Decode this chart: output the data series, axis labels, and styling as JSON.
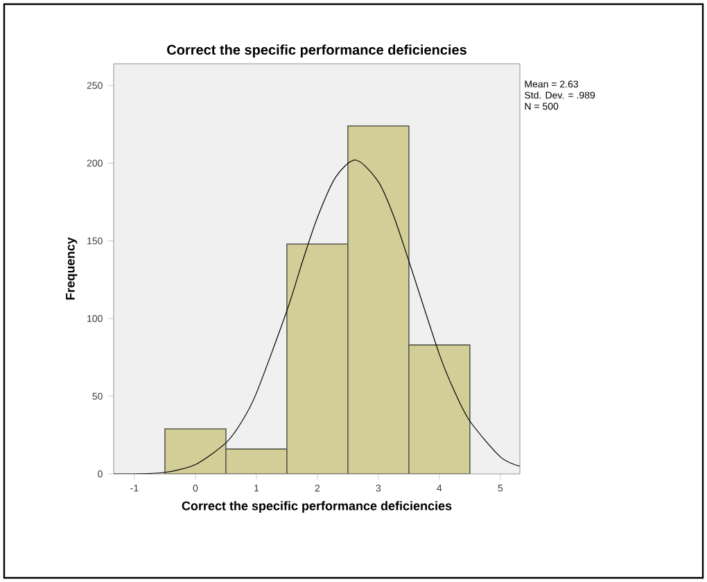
{
  "chart_data": {
    "type": "histogram",
    "title": "Correct the specific performance deficiencies",
    "xlabel": "Correct the specific performance deficiencies",
    "ylabel": "Frequency",
    "bins": [
      -0.5,
      0.5,
      1.5,
      2.5,
      3.5,
      4.5
    ],
    "values": [
      29,
      16,
      148,
      224,
      83
    ],
    "color": "#d3ce98",
    "series": [
      {
        "type": "line",
        "color": "#000000",
        "x": [
          -1.34,
          -1,
          -0.5,
          0,
          0.5,
          0.75,
          1,
          1.5,
          1.75,
          2,
          2.3,
          2.63,
          3,
          3.25,
          3.5,
          4,
          4.25,
          4.5,
          5,
          5.32
        ],
        "values": [
          0,
          0,
          1,
          6,
          20,
          33,
          52,
          105,
          136,
          165,
          191,
          202,
          188,
          166,
          137,
          77,
          53,
          34,
          11,
          5
        ]
      }
    ],
    "xlim": [
      -1.34,
      5.32
    ],
    "ylim": [
      0,
      264
    ],
    "xticks": [
      -1,
      0,
      1,
      2,
      3,
      4,
      5
    ],
    "yticks": [
      0,
      50,
      100,
      150,
      200,
      250
    ],
    "grid": false,
    "annotations": [
      "Mean = 2.63",
      "Std. Dev. = .989",
      "N = 500"
    ]
  }
}
